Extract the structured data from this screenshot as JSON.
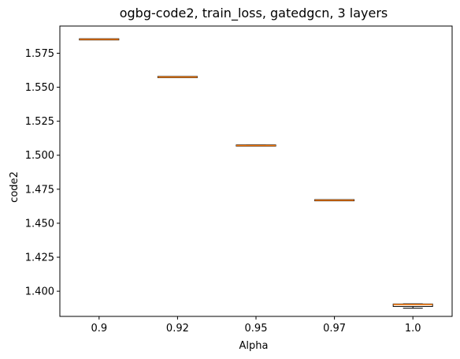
{
  "chart_data": {
    "type": "box",
    "title": "ogbg-code2, train_loss, gatedgcn, 3 layers",
    "xlabel": "Alpha",
    "ylabel": "code2",
    "categories": [
      "0.9",
      "0.92",
      "0.95",
      "0.97",
      "1.0"
    ],
    "ylim": [
      1.3815,
      1.595
    ],
    "yticks": [
      1.4,
      1.425,
      1.45,
      1.475,
      1.5,
      1.525,
      1.55,
      1.575
    ],
    "ytick_labels": [
      "1.400",
      "1.425",
      "1.450",
      "1.475",
      "1.500",
      "1.525",
      "1.550",
      "1.575"
    ],
    "grid": false,
    "boxes": [
      {
        "category": "0.9",
        "whislo": 1.585,
        "q1": 1.5851,
        "median": 1.5852,
        "q3": 1.5853,
        "whishi": 1.5854
      },
      {
        "category": "0.92",
        "whislo": 1.5573,
        "q1": 1.5574,
        "median": 1.5575,
        "q3": 1.5576,
        "whishi": 1.5577
      },
      {
        "category": "0.95",
        "whislo": 1.5068,
        "q1": 1.5069,
        "median": 1.5071,
        "q3": 1.5074,
        "whishi": 1.5075
      },
      {
        "category": "0.97",
        "whislo": 1.4667,
        "q1": 1.4668,
        "median": 1.4669,
        "q3": 1.467,
        "whishi": 1.4671
      },
      {
        "category": "1.0",
        "whislo": 1.3875,
        "q1": 1.3888,
        "median": 1.3902,
        "q3": 1.3906,
        "whishi": 1.3907
      }
    ],
    "colors": {
      "box": "#000000",
      "median": "#ff7f0e",
      "axes": "#000000"
    }
  }
}
